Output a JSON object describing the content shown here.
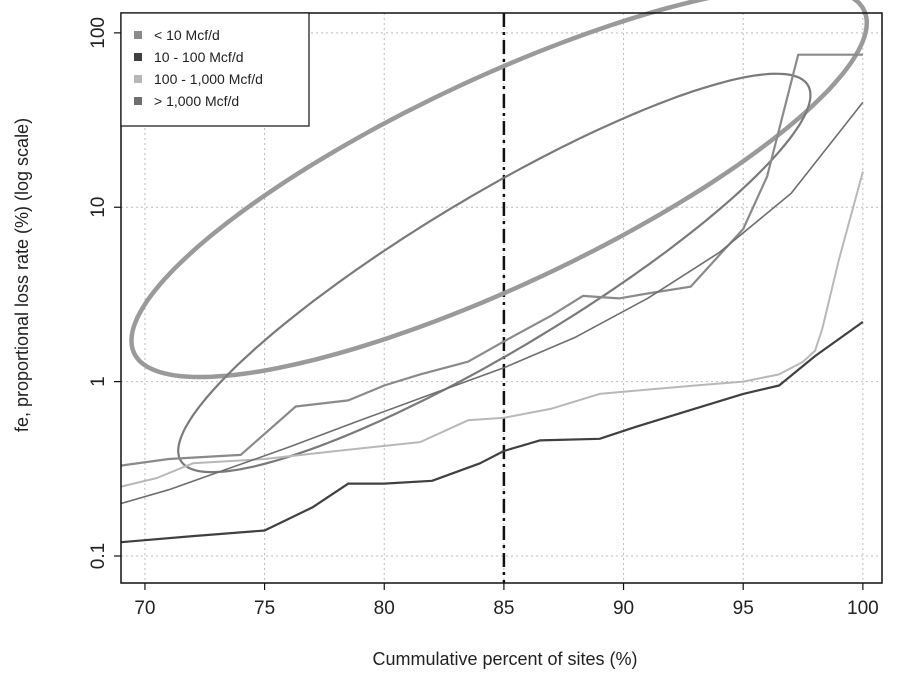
{
  "chart_data": {
    "type": "line",
    "title": "",
    "xlabel": "Cummulative percent of sites (%)",
    "ylabel": "fe, proportional loss rate (%) (log scale)",
    "x_scale": "linear",
    "y_scale": "log",
    "xlim": [
      69,
      100.8
    ],
    "ylim": [
      0.07,
      130
    ],
    "x_ticks": [
      70,
      75,
      80,
      85,
      90,
      95,
      100
    ],
    "x_tick_labels": [
      "70",
      "75",
      "80",
      "85",
      "90",
      "95",
      "100"
    ],
    "y_ticks": [
      0.1,
      1,
      10,
      100
    ],
    "y_tick_labels": [
      "0.1",
      "1",
      "10",
      "100"
    ],
    "grid": true,
    "reference_line_x": 85,
    "legend_position": "top-left",
    "series": [
      {
        "name": "< 10 Mcf/d",
        "color": "#8a8a8a",
        "x": [
          69.0,
          71.0,
          74.0,
          76.3,
          78.5,
          80.0,
          81.5,
          83.5,
          85.0,
          87.0,
          88.3,
          89.8,
          91.0,
          92.8,
          95.0,
          96.0,
          97.3,
          98.5,
          100.0
        ],
        "y": [
          0.33,
          0.36,
          0.38,
          0.72,
          0.78,
          0.95,
          1.1,
          1.3,
          1.7,
          2.4,
          3.1,
          3.0,
          3.2,
          3.5,
          7.5,
          15,
          75,
          75,
          75
        ]
      },
      {
        "name": "10 - 100 Mcf/d",
        "color": "#404040",
        "x": [
          69.0,
          72.0,
          75.0,
          77.0,
          78.5,
          80.0,
          82.0,
          84.0,
          85.0,
          86.5,
          89.0,
          90.5,
          93.0,
          95.0,
          96.5,
          98.0,
          100.0
        ],
        "y": [
          0.12,
          0.13,
          0.14,
          0.19,
          0.26,
          0.26,
          0.27,
          0.34,
          0.4,
          0.46,
          0.47,
          0.55,
          0.7,
          0.85,
          0.95,
          1.4,
          2.2
        ]
      },
      {
        "name": "100 - 1,000 Mcf/d",
        "color": "#b8b8b8",
        "x": [
          69.0,
          70.5,
          72.0,
          75.0,
          78.0,
          81.5,
          83.5,
          85.0,
          87.0,
          89.0,
          91.0,
          93.0,
          95.0,
          96.5,
          97.5,
          98.0,
          98.3,
          99.0,
          100.0
        ],
        "y": [
          0.25,
          0.28,
          0.34,
          0.36,
          0.4,
          0.45,
          0.6,
          0.62,
          0.7,
          0.85,
          0.9,
          0.95,
          1.0,
          1.1,
          1.3,
          1.5,
          2.0,
          5.0,
          16
        ]
      },
      {
        "name": "> 1,000 Mcf/d",
        "color": "#6e6e6e",
        "x": [
          69.0,
          71.0,
          73.0,
          76.0,
          79.0,
          82.0,
          85.0,
          88.0,
          91.0,
          94.0,
          97.0,
          100.0
        ],
        "y": [
          0.2,
          0.24,
          0.3,
          0.42,
          0.6,
          0.85,
          1.2,
          1.8,
          3.0,
          5.5,
          12,
          40
        ]
      }
    ],
    "ellipses": [
      {
        "color": "#9a9a9a",
        "label": "outer"
      },
      {
        "color": "#7a7a7a",
        "label": "inner"
      }
    ]
  }
}
